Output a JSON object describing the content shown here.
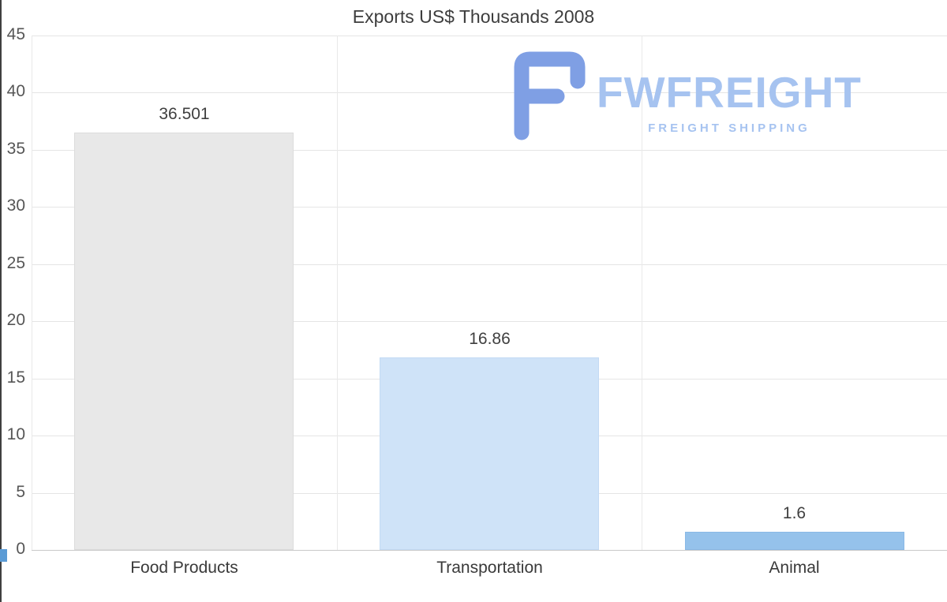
{
  "chart_data": {
    "type": "bar",
    "title": "Exports US$ Thousands 2008",
    "categories": [
      "Food Products",
      "Transportation",
      "Animal"
    ],
    "values": [
      36.501,
      16.86,
      1.6
    ],
    "value_labels": [
      "36.501",
      "16.86",
      "1.6"
    ],
    "xlabel": "",
    "ylabel": "",
    "ylim": [
      0,
      45
    ],
    "yticks": [
      0,
      5,
      10,
      15,
      20,
      25,
      30,
      35,
      40,
      45
    ],
    "grid": true,
    "legend": "none",
    "bar_colors": [
      "#e8e8e8",
      "#cfe3f8",
      "#95c2eb"
    ],
    "bar_border_colors": [
      "#dcdcdc",
      "#c3daf4",
      "#89b9e6"
    ]
  },
  "logo": {
    "name": "FWFREIGHT",
    "tagline": "FREIGHT SHIPPING",
    "icon": "fwfreight-f-icon",
    "color_icon": "#7f9fe4",
    "color_text": "#a6c3f0"
  },
  "axis": {
    "left_line_color": "#3f3f3f",
    "zero_marker_color": "#5b9bd5"
  }
}
